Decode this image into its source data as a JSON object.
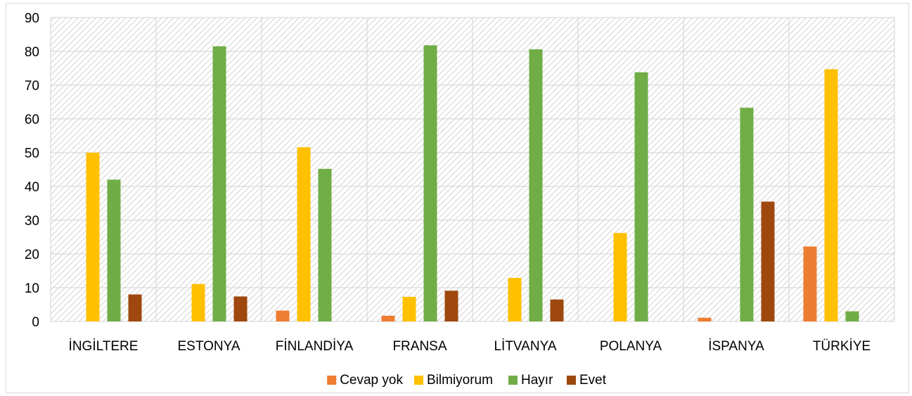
{
  "chart_data": {
    "type": "bar",
    "title": "",
    "xlabel": "",
    "ylabel": "",
    "categories": [
      "İNGİLTERE",
      "ESTONYA",
      "FİNLANDİYA",
      "FRANSA",
      "LİTVANYA",
      "POLANYA",
      "İSPANYA",
      "TÜRKİYE"
    ],
    "series": [
      {
        "name": "Cevap yok",
        "color": "#ED7D31",
        "values": [
          0,
          0,
          3.2,
          1.7,
          0,
          0,
          1.1,
          22.2
        ]
      },
      {
        "name": "Bilmiyorum",
        "color": "#FFC000",
        "values": [
          50.0,
          11.1,
          51.6,
          7.3,
          12.9,
          26.2,
          0,
          74.7
        ]
      },
      {
        "name": "Hayır",
        "color": "#70AD47",
        "values": [
          42.0,
          81.5,
          45.2,
          81.8,
          80.6,
          73.8,
          63.3,
          3.0
        ]
      },
      {
        "name": "Evet",
        "color": "#9E480E",
        "values": [
          8.0,
          7.4,
          0,
          9.1,
          6.5,
          0,
          35.5,
          0
        ]
      }
    ],
    "ylim": [
      0,
      90
    ],
    "yticks": [
      0,
      10,
      20,
      30,
      40,
      50,
      60,
      70,
      80,
      90
    ],
    "grid": true,
    "plot_background": "hatched",
    "legend_position": "bottom"
  }
}
